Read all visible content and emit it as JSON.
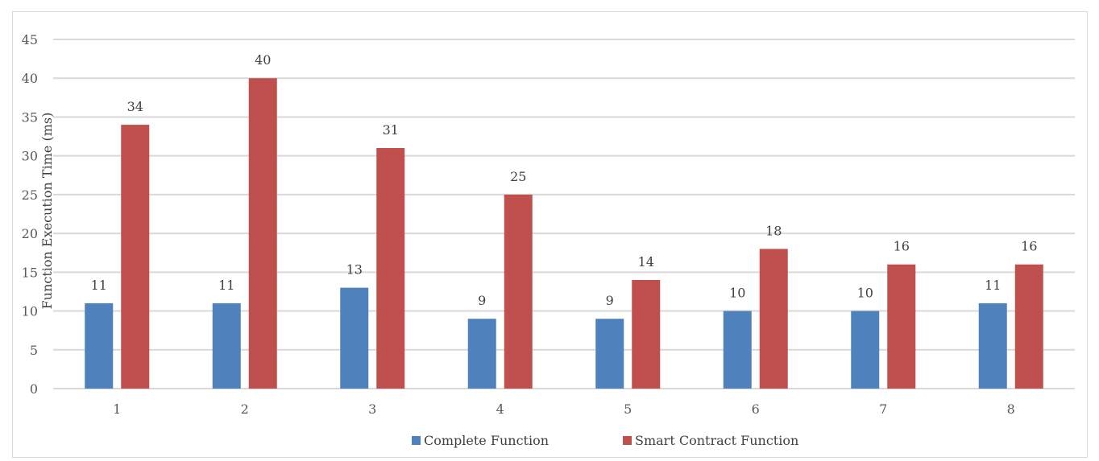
{
  "chart_data": {
    "type": "bar",
    "title": "",
    "xlabel": "",
    "ylabel": "Function Execution Time (ms)",
    "categories": [
      "1",
      "2",
      "3",
      "4",
      "5",
      "6",
      "7",
      "8"
    ],
    "series": [
      {
        "name": "Complete Function",
        "values": [
          11,
          11,
          13,
          9,
          9,
          10,
          10,
          11
        ],
        "color": "#4f81bd"
      },
      {
        "name": "Smart Contract Function",
        "values": [
          34,
          40,
          31,
          25,
          14,
          18,
          16,
          16
        ],
        "color": "#c0504d"
      }
    ],
    "ylim": [
      0,
      45
    ],
    "yticks": [
      0,
      5,
      10,
      15,
      20,
      25,
      30,
      35,
      40,
      45
    ],
    "grid": true,
    "data_labels": true,
    "legend": "bottom"
  }
}
